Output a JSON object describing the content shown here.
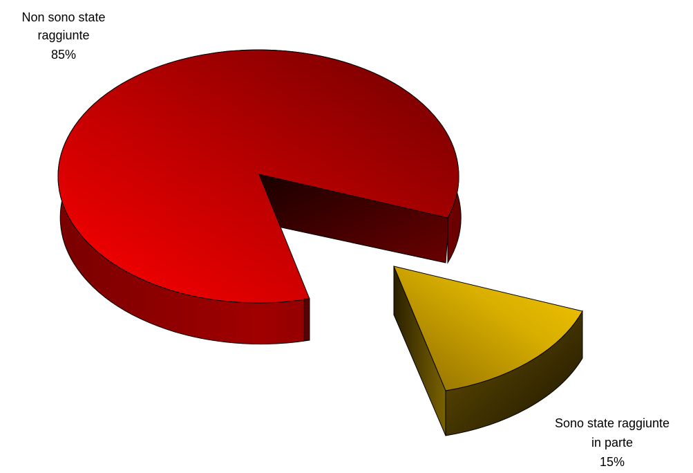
{
  "chart_data": {
    "type": "pie",
    "three_d": true,
    "exploded": true,
    "title": "",
    "slices": [
      {
        "label_lines": [
          "Non sono state",
          "raggiunte"
        ],
        "percent_label": "85%",
        "value": 85,
        "color": "#ff0000",
        "dark_color": "#7a0000"
      },
      {
        "label_lines": [
          "Sono state raggiunte",
          "in parte"
        ],
        "percent_label": "15%",
        "value": 15,
        "color": "#f2c200",
        "dark_color": "#3a2e00"
      }
    ]
  }
}
